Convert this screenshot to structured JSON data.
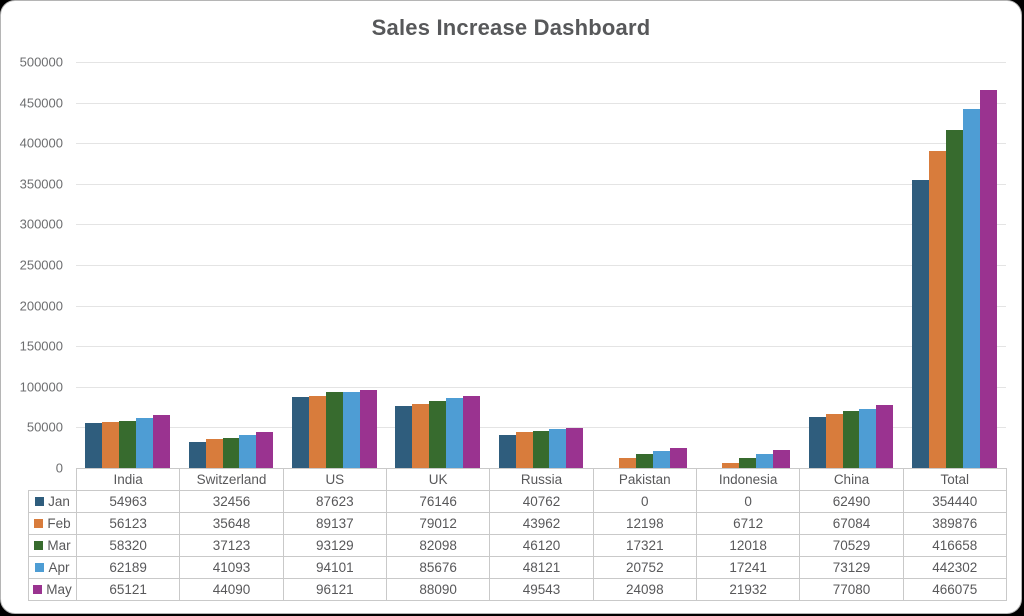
{
  "chart_data": {
    "type": "bar",
    "title": "Sales Increase Dashboard",
    "categories": [
      "India",
      "Switzerland",
      "US",
      "UK",
      "Russia",
      "Pakistan",
      "Indonesia",
      "China",
      "Total"
    ],
    "series": [
      {
        "name": "Jan",
        "color": "#2F5D7D",
        "values": [
          54963,
          32456,
          87623,
          76146,
          40762,
          0,
          0,
          62490,
          354440
        ]
      },
      {
        "name": "Feb",
        "color": "#D87C3C",
        "values": [
          56123,
          35648,
          89137,
          79012,
          43962,
          12198,
          6712,
          67084,
          389876
        ]
      },
      {
        "name": "Mar",
        "color": "#376B2E",
        "values": [
          58320,
          37123,
          93129,
          82098,
          46120,
          17321,
          12018,
          70529,
          416658
        ]
      },
      {
        "name": "Apr",
        "color": "#4E9DD4",
        "values": [
          62189,
          41093,
          94101,
          85676,
          48121,
          20752,
          17241,
          73129,
          442302
        ]
      },
      {
        "name": "May",
        "color": "#9A3390",
        "values": [
          65121,
          44090,
          96121,
          88090,
          49543,
          24098,
          21932,
          77080,
          466075
        ]
      }
    ],
    "xlabel": "",
    "ylabel": "",
    "ylim": [
      0,
      500000
    ],
    "ytick_step": 50000,
    "grid": "horizontal",
    "legend_position": "table-left-column",
    "colors": {
      "title_text": "#57585a",
      "axis_text": "#6d6e70",
      "table_text": "#58585a",
      "gridline": "#e4e4e4",
      "table_border": "#c9c9c9",
      "card_background": "#ffffff",
      "page_background": "#000000"
    }
  }
}
